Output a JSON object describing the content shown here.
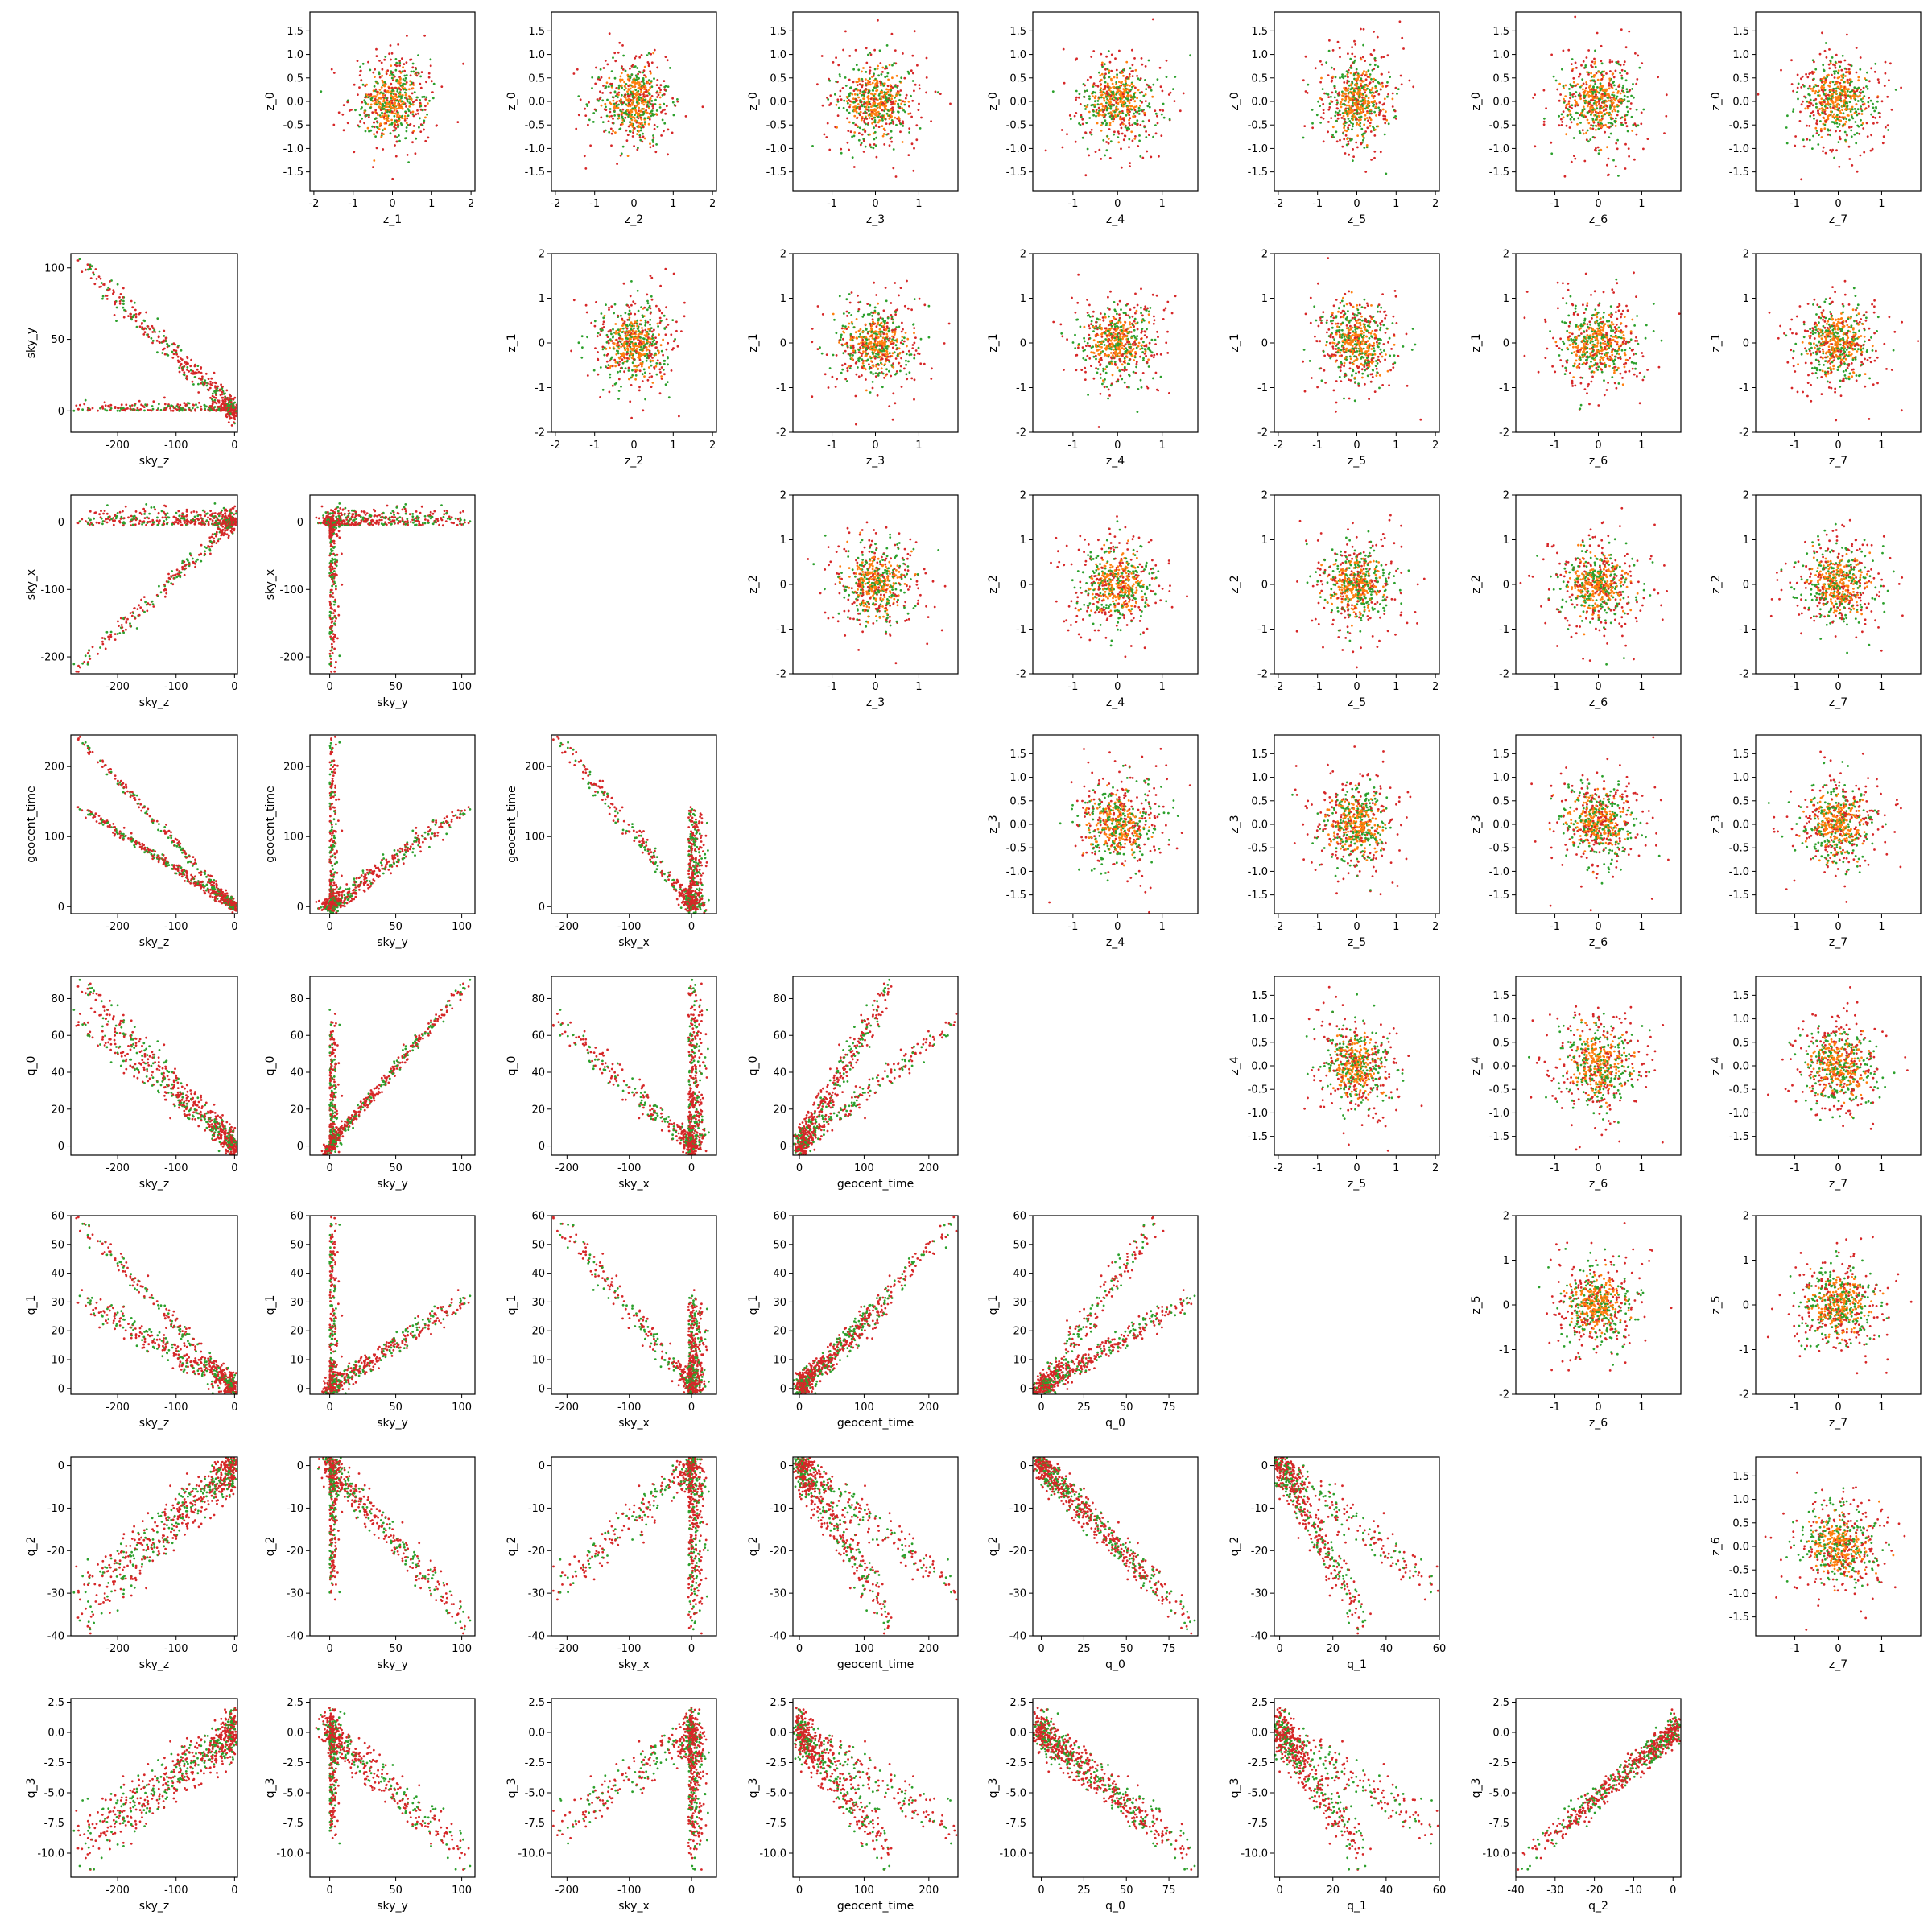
{
  "chart_data": {
    "type": "scatter",
    "layout": "pair-grid 8x8",
    "point_colors": [
      "#d62728",
      "#2ca02c",
      "#ff7f0e"
    ],
    "upper_triangle": {
      "x_ticks": {
        "z_1": [
          "-2",
          "-1",
          "0",
          "1",
          "2"
        ],
        "z_2": [
          "-2",
          "-1",
          "0",
          "1",
          "2"
        ],
        "z_3": [
          "-1",
          "0",
          "1"
        ],
        "z_4": [
          "-1",
          "0",
          "1"
        ],
        "z_5": [
          "-2",
          "-1",
          "0",
          "1",
          "2"
        ],
        "z_6": [
          "-1",
          "0",
          "1"
        ],
        "z_7": [
          "-1",
          "0",
          "1"
        ]
      },
      "y_ticks": {
        "z_0": [
          "1.5",
          "1.0",
          "0.5",
          "0.0",
          "-0.5",
          "-1.0",
          "-1.5"
        ],
        "z_1": [
          "2",
          "1",
          "0",
          "-1",
          "-2"
        ],
        "z_2": [
          "2",
          "1",
          "0",
          "-1",
          "-2"
        ],
        "z_3": [
          "1.5",
          "1.0",
          "0.5",
          "0.0",
          "-0.5",
          "-1.0",
          "-1.5"
        ],
        "z_4": [
          "1.5",
          "1.0",
          "0.5",
          "0.0",
          "-0.5",
          "-1.0",
          "-1.5"
        ],
        "z_5": [
          "2",
          "1",
          "0",
          "-1",
          "-2"
        ],
        "z_6": [
          "1.5",
          "1.0",
          "0.5",
          "0.0",
          "-0.5",
          "-1.0",
          "-1.5"
        ]
      },
      "description": "standard-normal latent pairs z_i vs z_j, red/green/orange scatter"
    },
    "lower_triangle": {
      "axes": [
        {
          "label": "sky_z",
          "range": [
            -280,
            5
          ],
          "ticks": [
            "-200",
            "-100",
            "0"
          ]
        },
        {
          "label": "sky_y",
          "range": [
            -15,
            110
          ],
          "ticks": [
            "0",
            "50",
            "100"
          ]
        },
        {
          "label": "sky_x",
          "range": [
            -225,
            40
          ],
          "ticks": [
            "-200",
            "-100",
            "0"
          ]
        },
        {
          "label": "geocent_time",
          "range": [
            -10,
            245
          ],
          "ticks": [
            "0",
            "100",
            "200"
          ]
        },
        {
          "label": "q_0",
          "range": [
            -5,
            92
          ],
          "ticks": [
            "0",
            "20",
            "40",
            "60",
            "80"
          ]
        },
        {
          "label": "q_1",
          "range": [
            -2,
            60
          ],
          "ticks": [
            "0",
            "10",
            "20",
            "30",
            "40",
            "50",
            "60"
          ]
        },
        {
          "label": "q_2",
          "range": [
            -40,
            2
          ],
          "ticks": [
            "0",
            "-10",
            "-20",
            "-30",
            "-40"
          ]
        },
        {
          "label": "q_3",
          "range": [
            -12,
            2.8
          ],
          "ticks": [
            "2.5",
            "0.0",
            "-2.5",
            "-5.0",
            "-7.5",
            "-10.0"
          ]
        }
      ],
      "x_tick_overrides": {
        "q_0": [
          "0",
          "25",
          "50",
          "75"
        ],
        "q_1": [
          "0",
          "20",
          "40",
          "60"
        ],
        "q_2": [
          "-40",
          "-30",
          "-20",
          "-10",
          "0"
        ]
      },
      "description": "physical-parameter pairs showing V-shaped and linear correlations"
    }
  }
}
